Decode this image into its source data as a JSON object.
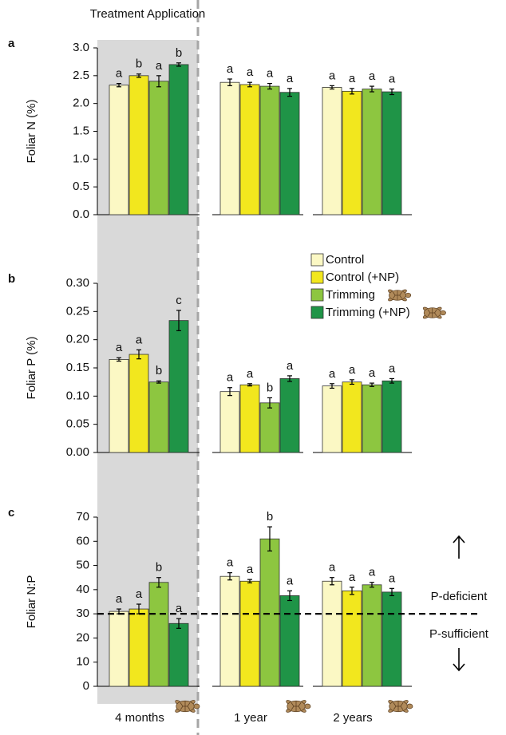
{
  "chart_data": [
    {
      "type": "bar",
      "panel_label": "a",
      "y_label": "Foliar N (%)",
      "annotations": [
        "Treatment Application"
      ],
      "ylim": [
        0,
        3.0
      ],
      "yticks": [
        {
          "value": 0,
          "label": "0.0"
        },
        0.5,
        {
          "value": 1,
          "label": "1.0"
        },
        1.5,
        {
          "value": 2,
          "label": "2.0"
        },
        2.5,
        {
          "value": 3,
          "label": "3.0"
        }
      ],
      "series": [
        {
          "color": "#fbf8c4",
          "values": [
            2.33,
            2.38,
            2.29
          ],
          "errors": [
            0.03,
            0.06,
            0.03
          ],
          "letters": [
            "a",
            "a",
            "a"
          ]
        },
        {
          "color": "#f2e71e",
          "values": [
            2.5,
            2.34,
            2.22
          ],
          "errors": [
            0.03,
            0.04,
            0.05
          ],
          "letters": [
            "b",
            "a",
            "a"
          ]
        },
        {
          "color": "#8dc640",
          "values": [
            2.4,
            2.31,
            2.26
          ],
          "errors": [
            0.1,
            0.05,
            0.05
          ],
          "letters": [
            "a",
            "a",
            "a"
          ]
        },
        {
          "color": "#1f9447",
          "values": [
            2.7,
            2.2,
            2.21
          ],
          "errors": [
            0.03,
            0.07,
            0.05
          ],
          "letters": [
            "b",
            "a",
            "a"
          ]
        }
      ]
    },
    {
      "type": "bar",
      "panel_label": "b",
      "y_label": "Foliar P (%)",
      "ylim": [
        0,
        0.3
      ],
      "yticks": [
        {
          "value": 0,
          "label": "0.00"
        },
        0.05,
        {
          "value": 0.1,
          "label": "0.10"
        },
        0.15,
        {
          "value": 0.2,
          "label": "0.20"
        },
        0.25,
        {
          "value": 0.3,
          "label": "0.30"
        }
      ],
      "series": [
        {
          "name": "Control",
          "color": "#fbf8c4",
          "values": [
            0.165,
            0.108,
            0.118
          ],
          "errors": [
            0.003,
            0.007,
            0.004
          ],
          "letters": [
            "a",
            "a",
            "a"
          ]
        },
        {
          "name": "Control (+NP)",
          "color": "#f2e71e",
          "values": [
            0.174,
            0.12,
            0.125
          ],
          "errors": [
            0.008,
            0.002,
            0.004
          ],
          "letters": [
            "a",
            "a",
            "a"
          ]
        },
        {
          "name": "Trimming",
          "color": "#8dc640",
          "values": [
            0.125,
            0.088,
            0.12
          ],
          "errors": [
            0.002,
            0.009,
            0.003
          ],
          "letters": [
            "b",
            "b",
            "a"
          ]
        },
        {
          "name": "Trimming (+NP)",
          "color": "#1f9447",
          "values": [
            0.234,
            0.131,
            0.127
          ],
          "errors": [
            0.018,
            0.005,
            0.004
          ],
          "letters": [
            "c",
            "a",
            "a"
          ]
        }
      ]
    },
    {
      "type": "bar",
      "panel_label": "c",
      "y_label": "Foliar N:P",
      "annotations": [
        "P-deficient",
        "P-sufficient"
      ],
      "reference_line": 30,
      "categories": [
        "4 months",
        "1 year",
        "2 years"
      ],
      "ylim": [
        0,
        70
      ],
      "yticks": [
        0,
        10,
        20,
        30,
        40,
        50,
        60,
        70
      ],
      "series": [
        {
          "color": "#fbf8c4",
          "values": [
            31,
            45.5,
            43.5
          ],
          "errors": [
            1,
            1.5,
            1.5
          ],
          "letters": [
            "a",
            "a",
            "a"
          ]
        },
        {
          "color": "#f2e71e",
          "values": [
            32,
            43.5,
            39.5
          ],
          "errors": [
            2,
            0.7,
            1.5
          ],
          "letters": [
            "a",
            "a",
            "a"
          ]
        },
        {
          "color": "#8dc640",
          "values": [
            43,
            61,
            42
          ],
          "errors": [
            2,
            5,
            1
          ],
          "letters": [
            "b",
            "b",
            "a"
          ]
        },
        {
          "color": "#1f9447",
          "values": [
            26,
            37.5,
            39
          ],
          "errors": [
            2,
            2,
            1.5
          ],
          "letters": [
            "a",
            "a",
            "a"
          ]
        }
      ]
    }
  ]
}
